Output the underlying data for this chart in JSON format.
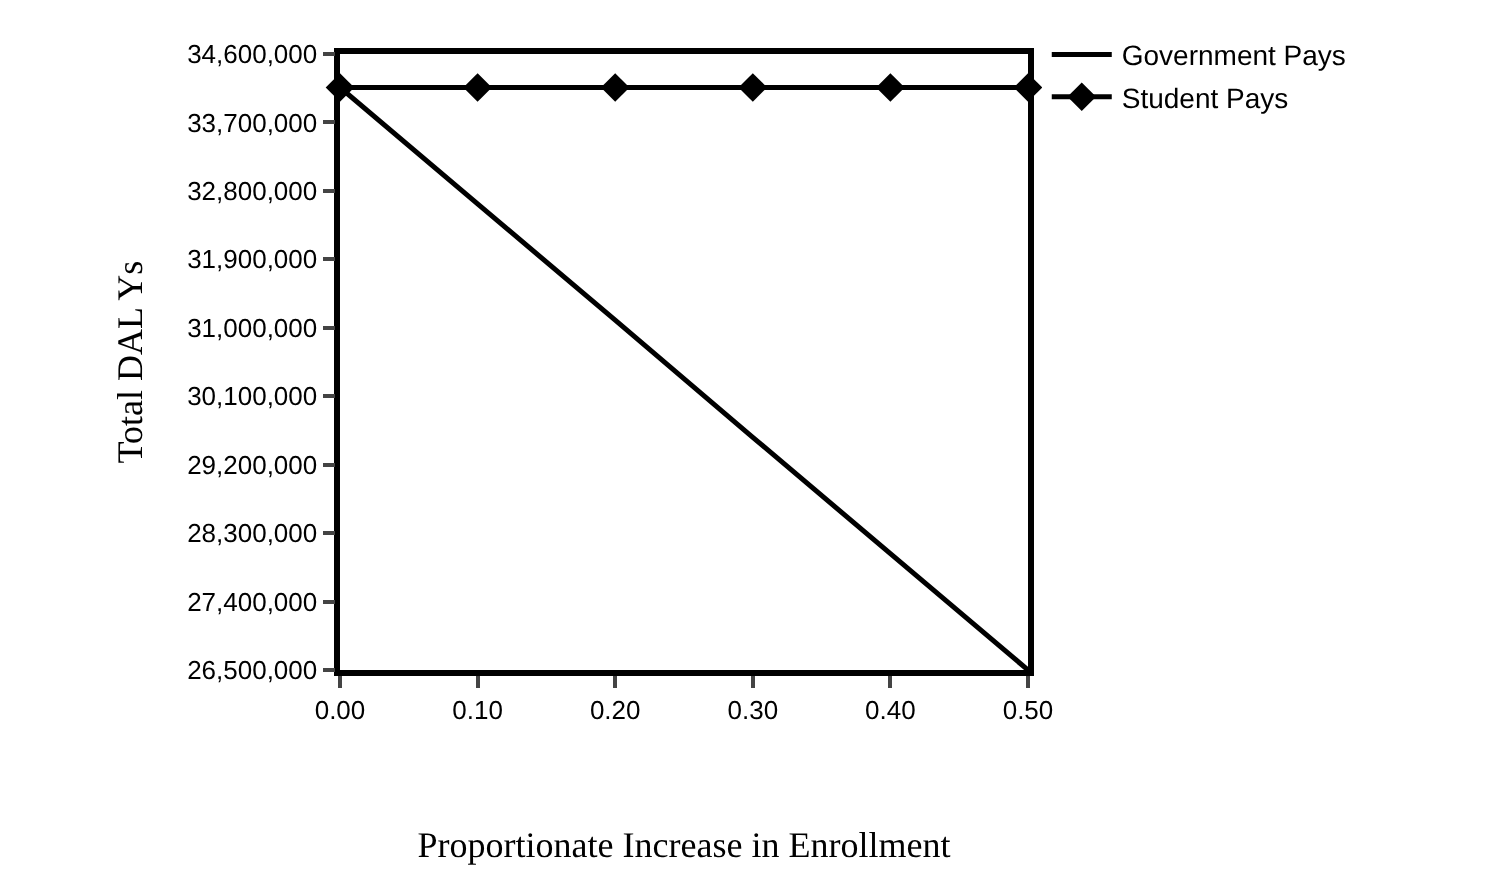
{
  "chart_data": {
    "type": "line",
    "xlabel": "Proportionate Increase in Enrollment",
    "ylabel": "Total DAL Ys",
    "x": [
      0,
      0.1,
      0.2,
      0.3,
      0.4,
      0.5
    ],
    "series": [
      {
        "name": "Government Pays",
        "color": "#000000",
        "marker": "none",
        "values": [
          34160000,
          32630000,
          31100000,
          29560000,
          28030000,
          26500000
        ]
      },
      {
        "name": "Student Pays",
        "color": "#000000",
        "marker": "diamond",
        "values": [
          34160000,
          34160000,
          34160000,
          34160000,
          34160000,
          34160000
        ]
      }
    ],
    "xlim": [
      0,
      0.5
    ],
    "xticks": [
      {
        "value": 0,
        "label": "0.00"
      },
      {
        "value": 0.1,
        "label": "0.10"
      },
      {
        "value": 0.2,
        "label": "0.20"
      },
      {
        "value": 0.3,
        "label": "0.30"
      },
      {
        "value": 0.4,
        "label": "0.40"
      },
      {
        "value": 0.5,
        "label": "0.50"
      }
    ],
    "ylim": [
      26500000,
      34600000
    ],
    "yticks": [
      {
        "value": 26500000,
        "label": "26,500,000"
      },
      {
        "value": 27400000,
        "label": "27,400,000"
      },
      {
        "value": 28300000,
        "label": "28,300,000"
      },
      {
        "value": 29200000,
        "label": "29,200,000"
      },
      {
        "value": 30100000,
        "label": "30,100,000"
      },
      {
        "value": 31000000,
        "label": "31,000,000"
      },
      {
        "value": 31900000,
        "label": "31,900,000"
      },
      {
        "value": 32800000,
        "label": "32,800,000"
      },
      {
        "value": 33700000,
        "label": "33,700,000"
      },
      {
        "value": 34600000,
        "label": "34,600,000"
      }
    ],
    "legend": "top right"
  }
}
